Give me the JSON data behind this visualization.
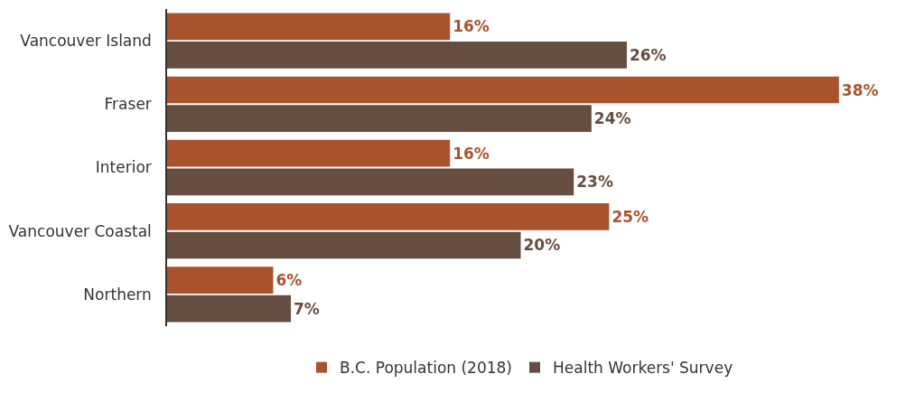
{
  "chart_data": {
    "type": "bar",
    "orientation": "horizontal",
    "categories": [
      "Vancouver Island",
      "Fraser",
      "Interior",
      "Vancouver Coastal",
      "Northern"
    ],
    "series": [
      {
        "name": "B.C. Population (2018)",
        "color": "#a9522e",
        "values": [
          16,
          38,
          16,
          25,
          6
        ],
        "value_labels": [
          "16%",
          "38%",
          "16%",
          "25%",
          "6%"
        ]
      },
      {
        "name": "Health Workers' Survey",
        "color": "#654d3f",
        "values": [
          26,
          24,
          23,
          20,
          7
        ],
        "value_labels": [
          "26%",
          "24%",
          "23%",
          "20%",
          "7%"
        ]
      }
    ],
    "legend": "bottom"
  }
}
